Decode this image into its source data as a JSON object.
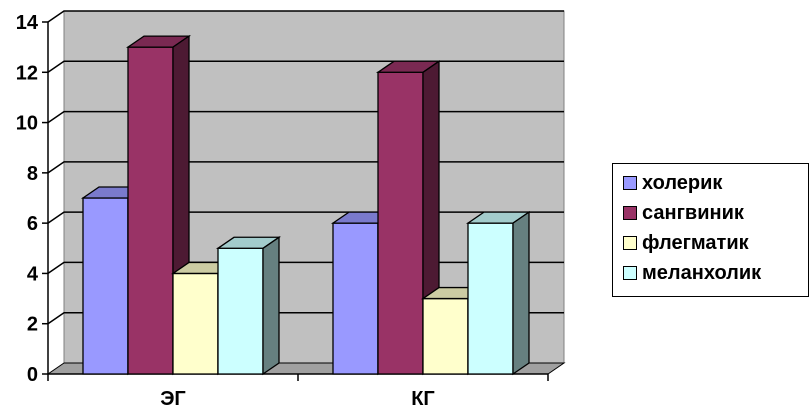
{
  "chart_data": {
    "type": "bar",
    "title": "",
    "xlabel": "",
    "ylabel": "",
    "categories": [
      "ЭГ",
      "КГ"
    ],
    "ylim": [
      0,
      14
    ],
    "yticks": [
      0,
      2,
      4,
      6,
      8,
      10,
      12,
      14
    ],
    "grid": true,
    "legend_position": "right",
    "series": [
      {
        "name": "холерик",
        "values": [
          7,
          6
        ],
        "color": "#9999ff"
      },
      {
        "name": "сангвиник",
        "values": [
          13,
          12
        ],
        "color": "#993366"
      },
      {
        "name": "флегматик",
        "values": [
          4,
          3
        ],
        "color": "#ffffcc"
      },
      {
        "name": "меланхолик",
        "values": [
          5,
          6
        ],
        "color": "#ccffff"
      }
    ],
    "colors": {
      "wall": "#c0c0c0",
      "floor": "#a0a0a0"
    }
  }
}
